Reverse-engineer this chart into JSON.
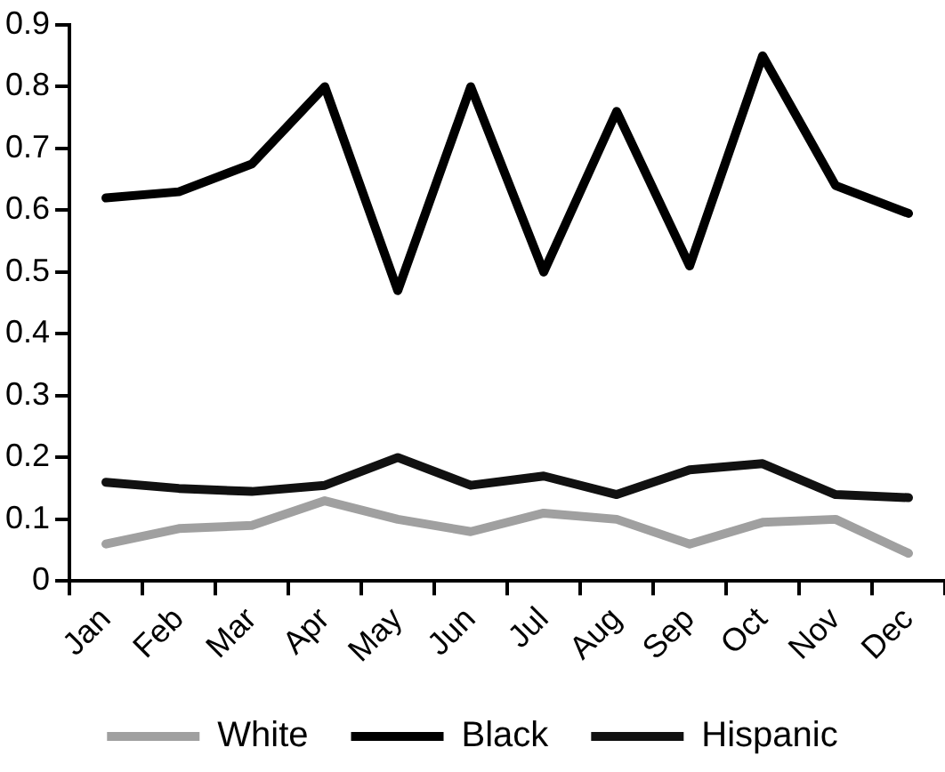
{
  "chart_data": {
    "type": "line",
    "categories": [
      "Jan",
      "Feb",
      "Mar",
      "Apr",
      "May",
      "Jun",
      "Jul",
      "Aug",
      "Sep",
      "Oct",
      "Nov",
      "Dec"
    ],
    "series": [
      {
        "name": "White",
        "color": "#a0a0a0",
        "values": [
          0.06,
          0.085,
          0.09,
          0.13,
          0.1,
          0.08,
          0.11,
          0.1,
          0.06,
          0.095,
          0.1,
          0.045
        ]
      },
      {
        "name": "Black",
        "color": "#000000",
        "values": [
          0.62,
          0.63,
          0.675,
          0.8,
          0.47,
          0.8,
          0.5,
          0.76,
          0.51,
          0.85,
          0.64,
          0.595
        ]
      },
      {
        "name": "Hispanic",
        "color": "#111111",
        "values": [
          0.16,
          0.15,
          0.145,
          0.155,
          0.2,
          0.155,
          0.17,
          0.14,
          0.18,
          0.19,
          0.14,
          0.135
        ]
      }
    ],
    "ylim": [
      0,
      0.9
    ],
    "yticks": [
      0,
      0.1,
      0.2,
      0.3,
      0.4,
      0.5,
      0.6,
      0.7,
      0.8,
      0.9
    ],
    "grid": false,
    "legend": "bottom",
    "marker": "none",
    "line_style": "solid"
  }
}
